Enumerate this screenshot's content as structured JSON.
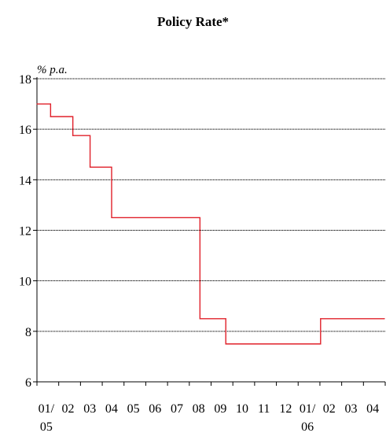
{
  "chart_data": {
    "type": "line",
    "title": "Policy Rate*",
    "unit_label": "% p.a.",
    "ylim": [
      6,
      18
    ],
    "yticks": [
      6,
      8,
      10,
      12,
      14,
      16,
      18
    ],
    "grid": "horizontal",
    "x_tick_labels": [
      {
        "line1": "01/",
        "line2": "05"
      },
      {
        "line1": "02",
        "line2": ""
      },
      {
        "line1": "03",
        "line2": ""
      },
      {
        "line1": "04",
        "line2": ""
      },
      {
        "line1": "05",
        "line2": ""
      },
      {
        "line1": "06",
        "line2": ""
      },
      {
        "line1": "07",
        "line2": ""
      },
      {
        "line1": "08",
        "line2": ""
      },
      {
        "line1": "09",
        "line2": ""
      },
      {
        "line1": "10",
        "line2": ""
      },
      {
        "line1": "11",
        "line2": ""
      },
      {
        "line1": "12",
        "line2": ""
      },
      {
        "line1": "01/",
        "line2": "06"
      },
      {
        "line1": "02",
        "line2": ""
      },
      {
        "line1": "03",
        "line2": ""
      },
      {
        "line1": "04",
        "line2": ""
      }
    ],
    "series": [
      {
        "color": "#e0202a",
        "step": true,
        "points": [
          {
            "x": "2005-01-01",
            "y": 17.0
          },
          {
            "x": "2005-01-20",
            "y": 16.5
          },
          {
            "x": "2005-02-20",
            "y": 15.75
          },
          {
            "x": "2005-03-16",
            "y": 14.5
          },
          {
            "x": "2005-04-15",
            "y": 12.5
          },
          {
            "x": "2005-08-16",
            "y": 8.5
          },
          {
            "x": "2005-09-21",
            "y": 7.5
          },
          {
            "x": "2006-01-31",
            "y": 8.5
          },
          {
            "x": "2006-04-30",
            "y": 8.5
          }
        ]
      }
    ]
  }
}
